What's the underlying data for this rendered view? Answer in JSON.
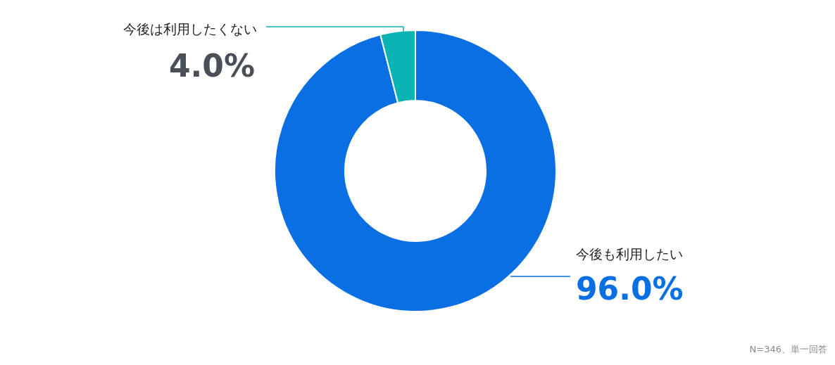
{
  "chart_data": {
    "type": "donut",
    "categories": [
      "今後も利用したい",
      "今後は利用したくない"
    ],
    "values": [
      96.0,
      4.0
    ],
    "colors": [
      "#0a6fe3",
      "#0bb3b4"
    ],
    "value_labels": [
      "96.0%",
      "4.0%"
    ],
    "annotations": [
      "N=346、単一回答"
    ]
  }
}
